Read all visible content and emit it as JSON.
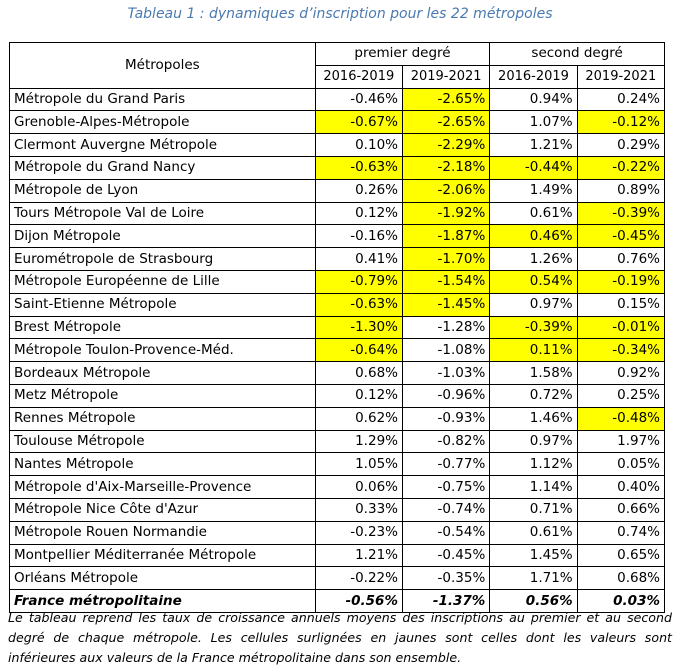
{
  "caption": "Tableau 1 : dynamiques d’inscription pour les 22 métropoles",
  "header": {
    "col_name": "Métropoles",
    "group1": "premier degré",
    "group2": "second degré",
    "periods": [
      "2016-2019",
      "2019-2021",
      "2016-2019",
      "2019-2021"
    ]
  },
  "highlight_color": "#ffff00",
  "rows": [
    {
      "name": "Métropole du Grand Paris",
      "values": [
        "-0.46%",
        "-2.65%",
        "0.94%",
        "0.24%"
      ],
      "highlight": [
        false,
        true,
        false,
        false
      ]
    },
    {
      "name": "Grenoble-Alpes-Métropole",
      "values": [
        "-0.67%",
        "-2.65%",
        "1.07%",
        "-0.12%"
      ],
      "highlight": [
        true,
        true,
        false,
        true
      ]
    },
    {
      "name": "Clermont Auvergne Métropole",
      "values": [
        "0.10%",
        "-2.29%",
        "1.21%",
        "0.29%"
      ],
      "highlight": [
        false,
        true,
        false,
        false
      ]
    },
    {
      "name": "Métropole du Grand Nancy",
      "values": [
        "-0.63%",
        "-2.18%",
        "-0.44%",
        "-0.22%"
      ],
      "highlight": [
        true,
        true,
        true,
        true
      ]
    },
    {
      "name": "Métropole de Lyon",
      "values": [
        "0.26%",
        "-2.06%",
        "1.49%",
        "0.89%"
      ],
      "highlight": [
        false,
        true,
        false,
        false
      ]
    },
    {
      "name": "Tours Métropole Val de Loire",
      "values": [
        "0.12%",
        "-1.92%",
        "0.61%",
        "-0.39%"
      ],
      "highlight": [
        false,
        true,
        false,
        true
      ]
    },
    {
      "name": "Dijon Métropole",
      "values": [
        "-0.16%",
        "-1.87%",
        "0.46%",
        "-0.45%"
      ],
      "highlight": [
        false,
        true,
        true,
        true
      ]
    },
    {
      "name": "Eurométropole de Strasbourg",
      "values": [
        "0.41%",
        "-1.70%",
        "1.26%",
        "0.76%"
      ],
      "highlight": [
        false,
        true,
        false,
        false
      ]
    },
    {
      "name": "Métropole Européenne de Lille",
      "values": [
        "-0.79%",
        "-1.54%",
        "0.54%",
        "-0.19%"
      ],
      "highlight": [
        true,
        true,
        true,
        true
      ]
    },
    {
      "name": "Saint-Etienne Métropole",
      "values": [
        "-0.63%",
        "-1.45%",
        "0.97%",
        "0.15%"
      ],
      "highlight": [
        true,
        true,
        false,
        false
      ]
    },
    {
      "name": "Brest Métropole",
      "values": [
        "-1.30%",
        "-1.28%",
        "-0.39%",
        "-0.01%"
      ],
      "highlight": [
        true,
        false,
        true,
        true
      ]
    },
    {
      "name": "Métropole Toulon-Provence-Méd.",
      "values": [
        "-0.64%",
        "-1.08%",
        "0.11%",
        "-0.34%"
      ],
      "highlight": [
        true,
        false,
        true,
        true
      ]
    },
    {
      "name": "Bordeaux Métropole",
      "values": [
        "0.68%",
        "-1.03%",
        "1.58%",
        "0.92%"
      ],
      "highlight": [
        false,
        false,
        false,
        false
      ]
    },
    {
      "name": "Metz Métropole",
      "values": [
        "0.12%",
        "-0.96%",
        "0.72%",
        "0.25%"
      ],
      "highlight": [
        false,
        false,
        false,
        false
      ]
    },
    {
      "name": "Rennes Métropole",
      "values": [
        "0.62%",
        "-0.93%",
        "1.46%",
        "-0.48%"
      ],
      "highlight": [
        false,
        false,
        false,
        true
      ]
    },
    {
      "name": "Toulouse Métropole",
      "values": [
        "1.29%",
        "-0.82%",
        "0.97%",
        "1.97%"
      ],
      "highlight": [
        false,
        false,
        false,
        false
      ]
    },
    {
      "name": "Nantes Métropole",
      "values": [
        "1.05%",
        "-0.77%",
        "1.12%",
        "0.05%"
      ],
      "highlight": [
        false,
        false,
        false,
        false
      ]
    },
    {
      "name": "Métropole d'Aix-Marseille-Provence",
      "values": [
        "0.06%",
        "-0.75%",
        "1.14%",
        "0.40%"
      ],
      "highlight": [
        false,
        false,
        false,
        false
      ]
    },
    {
      "name": "Métropole Nice Côte d'Azur",
      "values": [
        "0.33%",
        "-0.74%",
        "0.71%",
        "0.66%"
      ],
      "highlight": [
        false,
        false,
        false,
        false
      ]
    },
    {
      "name": "Métropole Rouen Normandie",
      "values": [
        "-0.23%",
        "-0.54%",
        "0.61%",
        "0.74%"
      ],
      "highlight": [
        false,
        false,
        false,
        false
      ]
    },
    {
      "name": "Montpellier Méditerranée Métropole",
      "values": [
        "1.21%",
        "-0.45%",
        "1.45%",
        "0.65%"
      ],
      "highlight": [
        false,
        false,
        false,
        false
      ]
    },
    {
      "name": "Orléans Métropole",
      "values": [
        "-0.22%",
        "-0.35%",
        "1.71%",
        "0.68%"
      ],
      "highlight": [
        false,
        false,
        false,
        false
      ]
    }
  ],
  "total": {
    "name": "France métropolitaine",
    "values": [
      "-0.56%",
      "-1.37%",
      "0.56%",
      "0.03%"
    ]
  },
  "note": "Le tableau reprend les taux de croissance annuels moyens des inscriptions au premier et au second degré de chaque métropole. Les cellules surlignées en jaunes sont celles dont les valeurs sont inférieures aux valeurs de la France métropolitaine dans son ensemble."
}
